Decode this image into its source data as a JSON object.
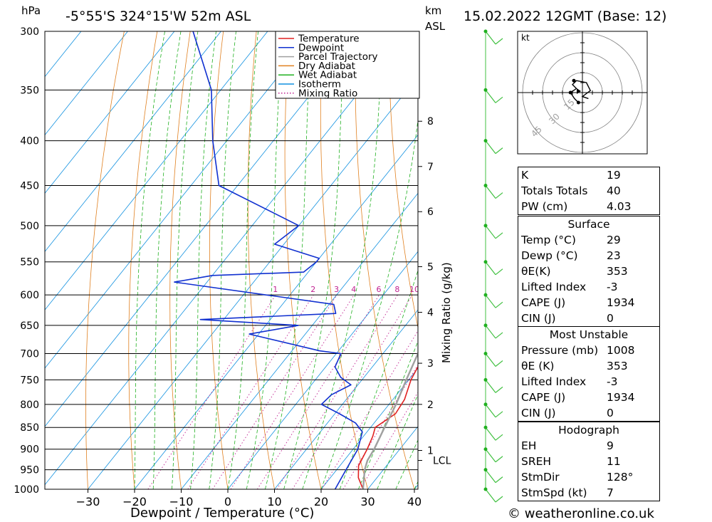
{
  "header": {
    "hpa_label": "hPa",
    "location": "-5°55'S 324°15'W 52m ASL",
    "km_label": "km",
    "asl_label": "ASL",
    "datetime": "15.02.2022 12GMT (Base: 12)"
  },
  "legend": [
    {
      "label": "Temperature",
      "color": "#e02020",
      "style": "solid"
    },
    {
      "label": "Dewpoint",
      "color": "#1030d0",
      "style": "solid"
    },
    {
      "label": "Parcel Trajectory",
      "color": "#a0a0a0",
      "style": "solid"
    },
    {
      "label": "Dry Adiabat",
      "color": "#e08020",
      "style": "solid"
    },
    {
      "label": "Wet Adiabat",
      "color": "#20b020",
      "style": "solid"
    },
    {
      "label": "Isotherm",
      "color": "#1090e0",
      "style": "solid"
    },
    {
      "label": "Mixing Ratio",
      "color": "#c02090",
      "style": "dotted"
    }
  ],
  "chart_data": {
    "type": "skew-t",
    "title": "-5°55'S 324°15'W 52m ASL",
    "xlabel": "Dewpoint / Temperature (°C)",
    "ylabel": "hPa",
    "xlim": [
      -40,
      40
    ],
    "ylim": [
      1000,
      300
    ],
    "x_ticks": [
      -30,
      -20,
      -10,
      0,
      10,
      20,
      30,
      40
    ],
    "pressure_levels": [
      300,
      350,
      400,
      450,
      500,
      550,
      600,
      650,
      700,
      750,
      800,
      850,
      900,
      950,
      1000
    ],
    "km_ticks": [
      {
        "label": "8",
        "p": 380
      },
      {
        "label": "7",
        "p": 428
      },
      {
        "label": "6",
        "p": 482
      },
      {
        "label": "5",
        "p": 557
      },
      {
        "label": "4",
        "p": 628
      },
      {
        "label": "3",
        "p": 718
      },
      {
        "label": "2",
        "p": 800
      },
      {
        "label": "1",
        "p": 903
      }
    ],
    "lcl": {
      "label": "LCL",
      "p": 927
    },
    "mixing_ratio_axis_label": "Mixing Ratio (g/kg)",
    "mixing_ratios": [
      1,
      2,
      3,
      4,
      6,
      8,
      10,
      15,
      20,
      25
    ],
    "series": [
      {
        "name": "Temperature",
        "color": "#e02020",
        "points": [
          [
            1000,
            29
          ],
          [
            970,
            26
          ],
          [
            940,
            24
          ],
          [
            900,
            23
          ],
          [
            870,
            22
          ],
          [
            850,
            21
          ],
          [
            820,
            23
          ],
          [
            790,
            22.5
          ],
          [
            750,
            20.5
          ],
          [
            700,
            19
          ],
          [
            650,
            16
          ],
          [
            600,
            13
          ],
          [
            550,
            8.5
          ],
          [
            500,
            3.5
          ],
          [
            450,
            -2.5
          ],
          [
            400,
            -9.5
          ],
          [
            350,
            -18
          ],
          [
            300,
            -28
          ]
        ]
      },
      {
        "name": "Dewpoint",
        "color": "#1030d0",
        "points": [
          [
            1000,
            23
          ],
          [
            950,
            22
          ],
          [
            900,
            21
          ],
          [
            860,
            19
          ],
          [
            840,
            16
          ],
          [
            820,
            11
          ],
          [
            800,
            5.5
          ],
          [
            780,
            6
          ],
          [
            760,
            8.5
          ],
          [
            745,
            5
          ],
          [
            725,
            2
          ],
          [
            700,
            1
          ],
          [
            695,
            -4
          ],
          [
            665,
            -22
          ],
          [
            650,
            -13
          ],
          [
            640,
            -35
          ],
          [
            630,
            -7
          ],
          [
            615,
            -9
          ],
          [
            580,
            -47
          ],
          [
            570,
            -40
          ],
          [
            565,
            -21
          ],
          [
            550,
            -20
          ],
          [
            545,
            -20
          ],
          [
            525,
            -32
          ],
          [
            500,
            -30
          ],
          [
            450,
            -54
          ],
          [
            400,
            -63
          ],
          [
            350,
            -72
          ],
          [
            300,
            -86
          ]
        ]
      },
      {
        "name": "Parcel Trajectory",
        "color": "#a0a0a0",
        "points": [
          [
            1000,
            29
          ],
          [
            950,
            26
          ],
          [
            927,
            25
          ],
          [
            900,
            24.5
          ],
          [
            850,
            23
          ],
          [
            800,
            21.5
          ],
          [
            750,
            19.5
          ],
          [
            700,
            17.5
          ],
          [
            650,
            15
          ],
          [
            600,
            12
          ],
          [
            550,
            8.5
          ],
          [
            500,
            4.5
          ],
          [
            450,
            -0.5
          ],
          [
            400,
            -6
          ],
          [
            350,
            -13
          ]
        ]
      }
    ],
    "wind_barbs": [
      {
        "p": 1000,
        "dir": 300,
        "kt": 7
      },
      {
        "p": 950,
        "dir": 295,
        "kt": 8
      },
      {
        "p": 900,
        "dir": 300,
        "kt": 6
      },
      {
        "p": 850,
        "dir": 290,
        "kt": 7
      },
      {
        "p": 800,
        "dir": 280,
        "kt": 8
      },
      {
        "p": 750,
        "dir": 270,
        "kt": 6
      },
      {
        "p": 700,
        "dir": 260,
        "kt": 9
      },
      {
        "p": 650,
        "dir": 255,
        "kt": 8
      },
      {
        "p": 600,
        "dir": 250,
        "kt": 7
      },
      {
        "p": 550,
        "dir": 245,
        "kt": 8
      },
      {
        "p": 500,
        "dir": 250,
        "kt": 6
      },
      {
        "p": 450,
        "dir": 240,
        "kt": 9
      },
      {
        "p": 400,
        "dir": 245,
        "kt": 7
      },
      {
        "p": 350,
        "dir": 250,
        "kt": 6
      },
      {
        "p": 300,
        "dir": 260,
        "kt": 8
      }
    ],
    "hodograph": {
      "unit_label": "kt",
      "ring_labels": [
        "15",
        "30",
        "45"
      ],
      "points_kt": [
        [
          -2,
          -5
        ],
        [
          -4,
          -3
        ],
        [
          -6,
          0
        ],
        [
          -3,
          2
        ],
        [
          -5,
          4
        ],
        [
          -3,
          6
        ],
        [
          2,
          5
        ],
        [
          4,
          1
        ],
        [
          0,
          -2
        ],
        [
          3,
          -3
        ]
      ]
    }
  },
  "indices": {
    "k_label": "K",
    "k_value": "19",
    "tt_label": "Totals Totals",
    "tt_value": "40",
    "pw_label": "PW (cm)",
    "pw_value": "4.03"
  },
  "surface": {
    "title": "Surface",
    "temp_label": "Temp (°C)",
    "temp_value": "29",
    "dewp_label": "Dewp (°C)",
    "dewp_value": "23",
    "theta_label": "θE(K)",
    "theta_value": "353",
    "li_label": "Lifted Index",
    "li_value": "-3",
    "cape_label": "CAPE (J)",
    "cape_value": "1934",
    "cin_label": "CIN (J)",
    "cin_value": "0"
  },
  "most_unstable": {
    "title": "Most Unstable",
    "pressure_label": "Pressure (mb)",
    "pressure_value": "1008",
    "theta_label": "θE (K)",
    "theta_value": "353",
    "li_label": "Lifted Index",
    "li_value": "-3",
    "cape_label": "CAPE (J)",
    "cape_value": "1934",
    "cin_label": "CIN (J)",
    "cin_value": "0"
  },
  "hodograph_stats": {
    "title": "Hodograph",
    "eh_label": "EH",
    "eh_value": "9",
    "sreh_label": "SREH",
    "sreh_value": "11",
    "stmdir_label": "StmDir",
    "stmdir_value": "128°",
    "stmspd_label": "StmSpd (kt)",
    "stmspd_value": "7"
  },
  "footer": {
    "copyright": "© weatheronline.co.uk"
  }
}
